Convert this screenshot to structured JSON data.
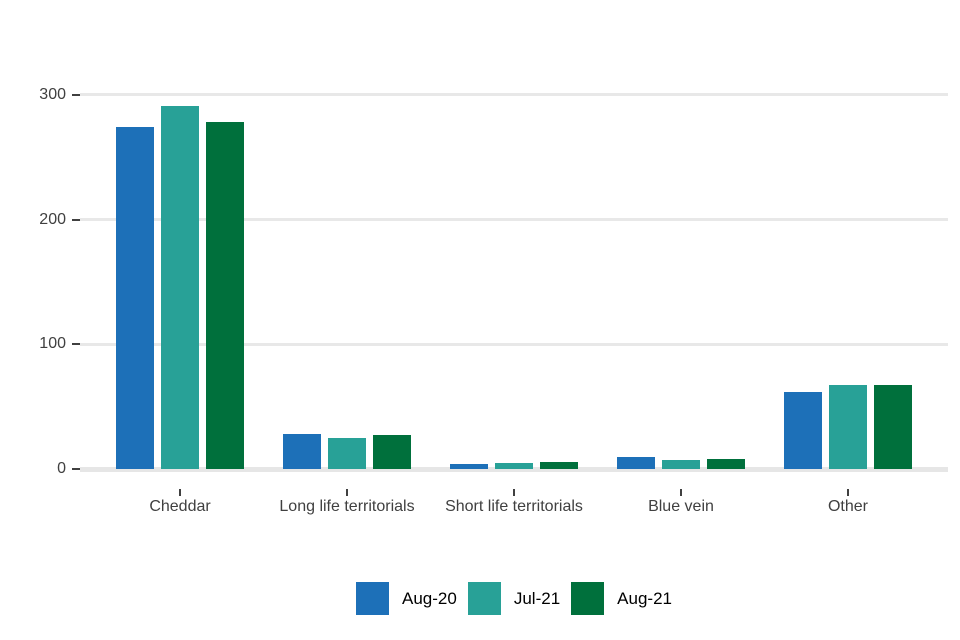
{
  "chart_data": {
    "type": "bar",
    "title": "",
    "xlabel": "",
    "ylabel": "",
    "categories": [
      "Cheddar",
      "Long life territorials",
      "Short life territorials",
      "Blue vein",
      "Other"
    ],
    "series": [
      {
        "name": "Aug-20",
        "color": "#1d70b8",
        "values": [
          274,
          28,
          4,
          10,
          62
        ]
      },
      {
        "name": "Jul-21",
        "color": "#28a197",
        "values": [
          291,
          25,
          5,
          7,
          67
        ]
      },
      {
        "name": "Aug-21",
        "color": "#00703c",
        "values": [
          278,
          27,
          6,
          8,
          67
        ]
      }
    ],
    "ylim": [
      0,
      300
    ],
    "y_ticks": [
      0,
      100,
      200,
      300
    ],
    "grid": true,
    "legend_position": "bottom",
    "background_color": "#ffffff",
    "grid_color": "#e8e8e8",
    "axis_text_color": "#404040",
    "legend_text_color": "#000000"
  }
}
